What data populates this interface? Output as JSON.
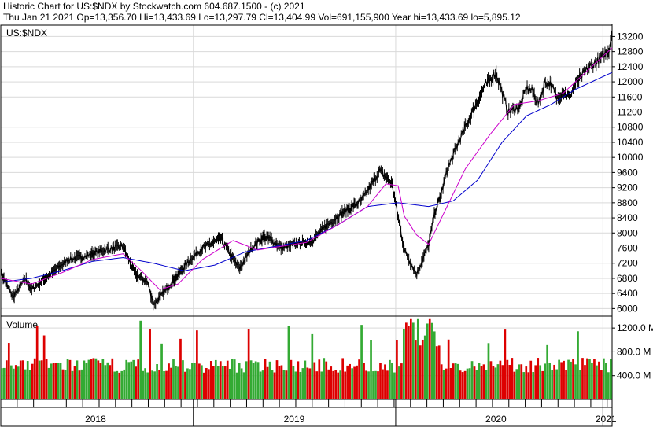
{
  "header": {
    "line1": "Historic Chart for US:$NDX by Stockwatch.com 604.687.1500 - (c) 2021",
    "line2": "Thu Jan 21 2021   Op=13,356.70   Hi=13,433.69   Lo=13,297.79   Cl=13,404.99   Vol=691,155,900   Year hi=13,433.69   lo=5,895.12"
  },
  "price_panel": {
    "symbol_label": "US:$NDX",
    "y_ticks": [
      "13200",
      "12800",
      "12400",
      "12000",
      "11600",
      "11200",
      "10800",
      "10400",
      "10000",
      "9600",
      "9200",
      "8800",
      "8400",
      "8000",
      "7600",
      "7200",
      "6800",
      "6400",
      "6000"
    ]
  },
  "volume_panel": {
    "title": "Volume",
    "y_ticks": [
      "1200.0 M",
      "800.0 M",
      "400.0 M"
    ]
  },
  "x_axis": {
    "year_labels": [
      "2018",
      "2019",
      "2020",
      "2021"
    ]
  },
  "colors": {
    "price": "#000000",
    "ma_short": "#cc00cc",
    "ma_long": "#0000cc",
    "vol_up": "#33aa33",
    "vol_down": "#dd0000",
    "grid": "#d9d9d9"
  },
  "chart_data": {
    "type": "line",
    "y_scale": [
      5800,
      13500
    ],
    "series": [
      {
        "key": "close",
        "x": [
          0,
          0.02,
          0.04,
          0.05,
          0.08,
          0.11,
          0.14,
          0.17,
          0.2,
          0.22,
          0.24,
          0.25,
          0.27,
          0.29,
          0.31,
          0.33,
          0.36,
          0.39,
          0.41,
          0.43,
          0.44,
          0.46,
          0.48,
          0.51,
          0.53,
          0.56,
          0.59,
          0.62,
          0.64,
          0.66,
          0.68,
          0.7,
          0.71,
          0.72,
          0.73,
          0.75,
          0.77,
          0.79,
          0.81,
          0.83,
          0.85,
          0.86,
          0.87,
          0.88,
          0.89,
          0.9,
          0.91,
          0.92,
          0.93,
          0.94,
          0.96,
          0.98,
          0.995,
          1.0
        ],
        "values": [
          6950,
          6300,
          6800,
          6500,
          6900,
          7300,
          7400,
          7550,
          7650,
          6900,
          6700,
          6100,
          6500,
          6900,
          7300,
          7600,
          7850,
          7050,
          7600,
          7900,
          7850,
          7600,
          7700,
          7800,
          8150,
          8550,
          8850,
          9650,
          9300,
          7550,
          6900,
          7700,
          8550,
          9000,
          9650,
          10450,
          11150,
          11850,
          12250,
          11200,
          11350,
          11850,
          11750,
          11400,
          12000,
          11950,
          11550,
          11750,
          11600,
          11950,
          12350,
          12600,
          12850,
          13400
        ]
      },
      {
        "key": "ma_short",
        "x": [
          0,
          0.05,
          0.1,
          0.15,
          0.2,
          0.23,
          0.26,
          0.29,
          0.33,
          0.38,
          0.42,
          0.46,
          0.5,
          0.55,
          0.6,
          0.63,
          0.65,
          0.66,
          0.68,
          0.7,
          0.73,
          0.76,
          0.8,
          0.84,
          0.88,
          0.92,
          0.96,
          1.0
        ],
        "values": [
          6800,
          6650,
          6950,
          7300,
          7450,
          7000,
          6500,
          6650,
          7300,
          7800,
          7550,
          7650,
          7750,
          8200,
          8700,
          9300,
          9250,
          8450,
          7950,
          7700,
          8700,
          9700,
          10600,
          11400,
          11500,
          11700,
          12300,
          12900
        ]
      },
      {
        "key": "ma_long",
        "x": [
          0,
          0.05,
          0.1,
          0.15,
          0.2,
          0.25,
          0.3,
          0.35,
          0.4,
          0.45,
          0.5,
          0.55,
          0.6,
          0.65,
          0.7,
          0.74,
          0.78,
          0.82,
          0.86,
          0.9,
          0.94,
          0.98,
          1.0
        ],
        "values": [
          6700,
          6800,
          7000,
          7250,
          7350,
          7200,
          7000,
          7150,
          7500,
          7650,
          7800,
          8200,
          8700,
          8800,
          8700,
          8850,
          9400,
          10400,
          11100,
          11400,
          11800,
          12100,
          12250
        ]
      }
    ],
    "volume": {
      "unit": "M",
      "range": [
        0,
        1400
      ]
    }
  }
}
